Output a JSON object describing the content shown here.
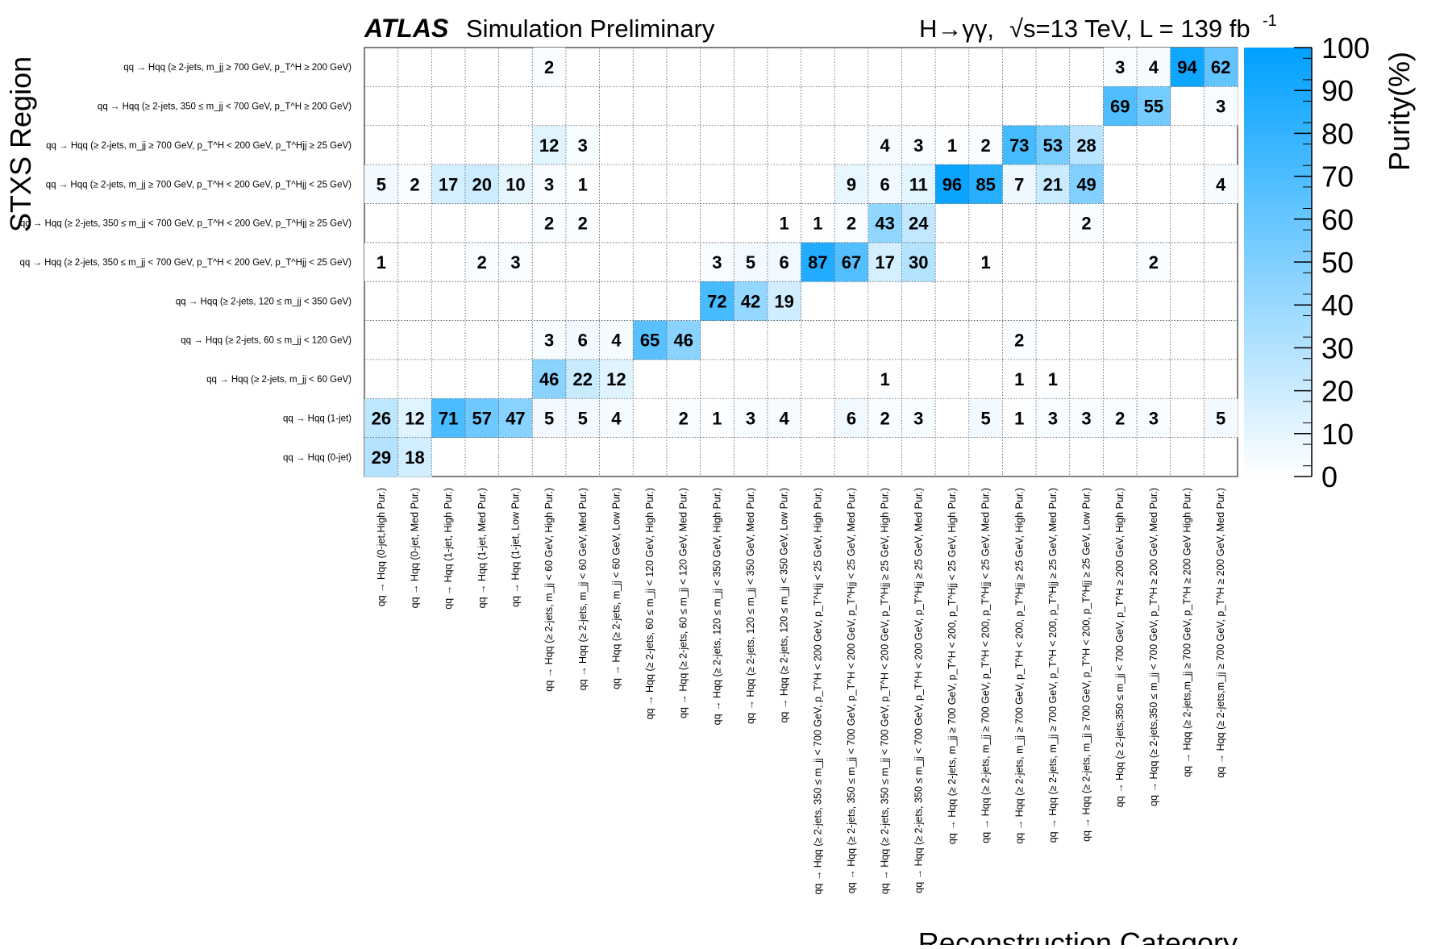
{
  "header": {
    "atlas": "ATLAS",
    "status": "Simulation Preliminary",
    "process": "H→γγ,",
    "energy": "√s=13 TeV, L = 139 fb",
    "lumi_exp": "-1"
  },
  "chart_data": {
    "type": "heatmap",
    "xlabel": "Reconstruction Category",
    "ylabel": "STXS Region",
    "zlabel": "Purity(%)",
    "zlim": [
      0,
      100
    ],
    "colorbar_ticks": [
      "100",
      "90",
      "80",
      "70",
      "60",
      "50",
      "40",
      "30",
      "20",
      "10",
      "0"
    ],
    "colors": {
      "low": "#ffffff",
      "high": "#00a0ff"
    },
    "grid": true,
    "x_categories": [
      "qq → Hqq (0-jet,High Pur.)",
      "qq → Hqq (0-jet, Med Pur.)",
      "qq → Hqq (1-jet, High Pur.)",
      "qq → Hqq (1-jet, Med Pur.)",
      "qq → Hqq (1-jet, Low Pur.)",
      "qq → Hqq (≥ 2-jets, m_jj < 60 GeV, High Pur.)",
      "qq → Hqq (≥ 2-jets, m_jj < 60 GeV, Med Pur.)",
      "qq → Hqq (≥ 2-jets, m_jj < 60 GeV, Low Pur.)",
      "qq → Hqq (≥ 2-jets, 60 ≤ m_jj < 120 GeV, High Pur.)",
      "qq → Hqq (≥ 2-jets, 60 ≤ m_jj < 120 GeV, Med Pur.)",
      "qq → Hqq (≥ 2-jets, 120 ≤ m_jj < 350 GeV, High Pur.)",
      "qq → Hqq (≥ 2-jets, 120 ≤ m_jj < 350 GeV, Med Pur.)",
      "qq → Hqq (≥ 2-jets, 120 ≤ m_jj < 350 GeV, Low Pur.)",
      "qq → Hqq (≥ 2-jets, 350 ≤ m_jj < 700 GeV, p_T^H < 200 GeV, p_T^Hjj < 25 GeV, High Pur.)",
      "qq → Hqq (≥ 2-jets, 350 ≤ m_jj < 700 GeV, p_T^H < 200 GeV, p_T^Hjj < 25 GeV, Med Pur.)",
      "qq → Hqq (≥ 2-jets, 350 ≤ m_jj < 700 GeV, p_T^H < 200 GeV, p_T^Hjj ≥ 25 GeV, High Pur.)",
      "qq → Hqq (≥ 2-jets, 350 ≤ m_jj < 700 GeV, p_T^H < 200 GeV, p_T^Hjj ≥ 25 GeV, Med Pur.)",
      "qq → Hqq (≥ 2-jets, m_jj ≥ 700 GeV, p_T^H < 200, p_T^Hjj < 25 GeV, High Pur.)",
      "qq → Hqq (≥ 2-jets, m_jj ≥ 700 GeV, p_T^H < 200, p_T^Hjj < 25 GeV, Med Pur.)",
      "qq → Hqq (≥ 2-jets, m_jj ≥ 700 GeV, p_T^H < 200, p_T^Hjj ≥ 25 GeV, High Pur.)",
      "qq → Hqq (≥ 2-jets, m_jj ≥ 700 GeV, p_T^H < 200, p_T^Hjj ≥ 25 GeV, Med Pur.)",
      "qq → Hqq (≥ 2-jets, m_jj ≥ 700 GeV, p_T^H < 200, p_T^Hjj ≥ 25 GeV, Low Pur.)",
      "qq → Hqq (≥ 2-jets,350 ≤ m_jj < 700 GeV, p_T^H ≥ 200 GeV, High Pur.)",
      "qq → Hqq (≥ 2-jets,350 ≤ m_jj < 700 GeV, p_T^H ≥ 200 GeV, Med Pur.)",
      "qq → Hqq (≥ 2-jets,m_jj ≥ 700 GeV, p_T^H ≥ 200 GeV High Pur.)",
      "qq → Hqq (≥ 2-jets,m_jj ≥ 700 GeV, p_T^H ≥ 200 GeV, Med Pur.)"
    ],
    "y_categories": [
      "qq → Hqq (≥ 2-jets, m_jj ≥ 700 GeV, p_T^H ≥ 200 GeV)",
      "qq → Hqq (≥ 2-jets, 350 ≤ m_jj < 700 GeV, p_T^H ≥ 200 GeV)",
      "qq → Hqq (≥ 2-jets, m_jj ≥ 700 GeV, p_T^H < 200 GeV, p_T^Hjj ≥ 25 GeV)",
      "qq → Hqq (≥ 2-jets, m_jj ≥ 700 GeV, p_T^H < 200 GeV, p_T^Hjj < 25 GeV)",
      "qq → Hqq (≥ 2-jets, 350 ≤ m_jj < 700 GeV, p_T^H < 200 GeV, p_T^Hjj ≥ 25 GeV)",
      "qq → Hqq (≥ 2-jets, 350 ≤ m_jj < 700 GeV, p_T^H < 200 GeV, p_T^Hjj < 25 GeV)",
      "qq → Hqq (≥ 2-jets, 120 ≤ m_jj < 350 GeV)",
      "qq → Hqq (≥ 2-jets, 60 ≤ m_jj < 120 GeV)",
      "qq → Hqq (≥ 2-jets, m_jj < 60 GeV)",
      "qq → Hqq (1-jet)",
      "qq → Hqq (0-jet)"
    ],
    "values": [
      [
        null,
        null,
        null,
        null,
        null,
        2,
        null,
        null,
        null,
        null,
        null,
        null,
        null,
        null,
        null,
        null,
        null,
        null,
        null,
        null,
        null,
        null,
        3,
        4,
        94,
        62
      ],
      [
        null,
        null,
        null,
        null,
        null,
        null,
        null,
        null,
        null,
        null,
        null,
        null,
        null,
        null,
        null,
        null,
        null,
        null,
        null,
        null,
        null,
        null,
        69,
        55,
        null,
        3
      ],
      [
        null,
        null,
        null,
        null,
        null,
        12,
        3,
        null,
        null,
        null,
        null,
        null,
        null,
        null,
        null,
        4,
        3,
        1,
        2,
        73,
        53,
        28,
        null,
        null,
        null,
        null
      ],
      [
        5,
        2,
        17,
        20,
        10,
        3,
        1,
        null,
        null,
        null,
        null,
        null,
        null,
        null,
        9,
        6,
        11,
        96,
        85,
        7,
        21,
        49,
        null,
        null,
        null,
        4
      ],
      [
        null,
        null,
        null,
        null,
        null,
        2,
        2,
        null,
        null,
        null,
        null,
        null,
        1,
        1,
        2,
        43,
        24,
        null,
        null,
        null,
        null,
        2,
        null,
        null,
        null,
        null
      ],
      [
        1,
        null,
        null,
        2,
        3,
        null,
        null,
        null,
        null,
        null,
        3,
        5,
        6,
        87,
        67,
        17,
        30,
        null,
        1,
        null,
        null,
        null,
        null,
        2,
        null,
        null
      ],
      [
        null,
        null,
        null,
        null,
        null,
        null,
        null,
        null,
        null,
        null,
        72,
        42,
        19,
        null,
        null,
        null,
        null,
        null,
        null,
        null,
        null,
        null,
        null,
        null,
        null,
        null
      ],
      [
        null,
        null,
        null,
        null,
        null,
        3,
        6,
        4,
        65,
        46,
        null,
        null,
        null,
        null,
        null,
        null,
        null,
        null,
        null,
        2,
        null,
        null,
        null,
        null,
        null,
        null
      ],
      [
        null,
        null,
        null,
        null,
        null,
        46,
        22,
        12,
        null,
        null,
        null,
        null,
        null,
        null,
        null,
        1,
        null,
        null,
        null,
        1,
        1,
        null,
        null,
        null,
        null,
        null
      ],
      [
        26,
        12,
        71,
        57,
        47,
        5,
        5,
        4,
        null,
        2,
        1,
        3,
        4,
        null,
        6,
        2,
        3,
        null,
        5,
        1,
        3,
        3,
        2,
        3,
        null,
        5
      ],
      [
        29,
        18,
        null,
        null,
        null,
        null,
        null,
        null,
        null,
        null,
        null,
        null,
        null,
        null,
        null,
        null,
        null,
        null,
        null,
        null,
        null,
        null,
        null,
        null,
        null,
        null
      ]
    ]
  }
}
